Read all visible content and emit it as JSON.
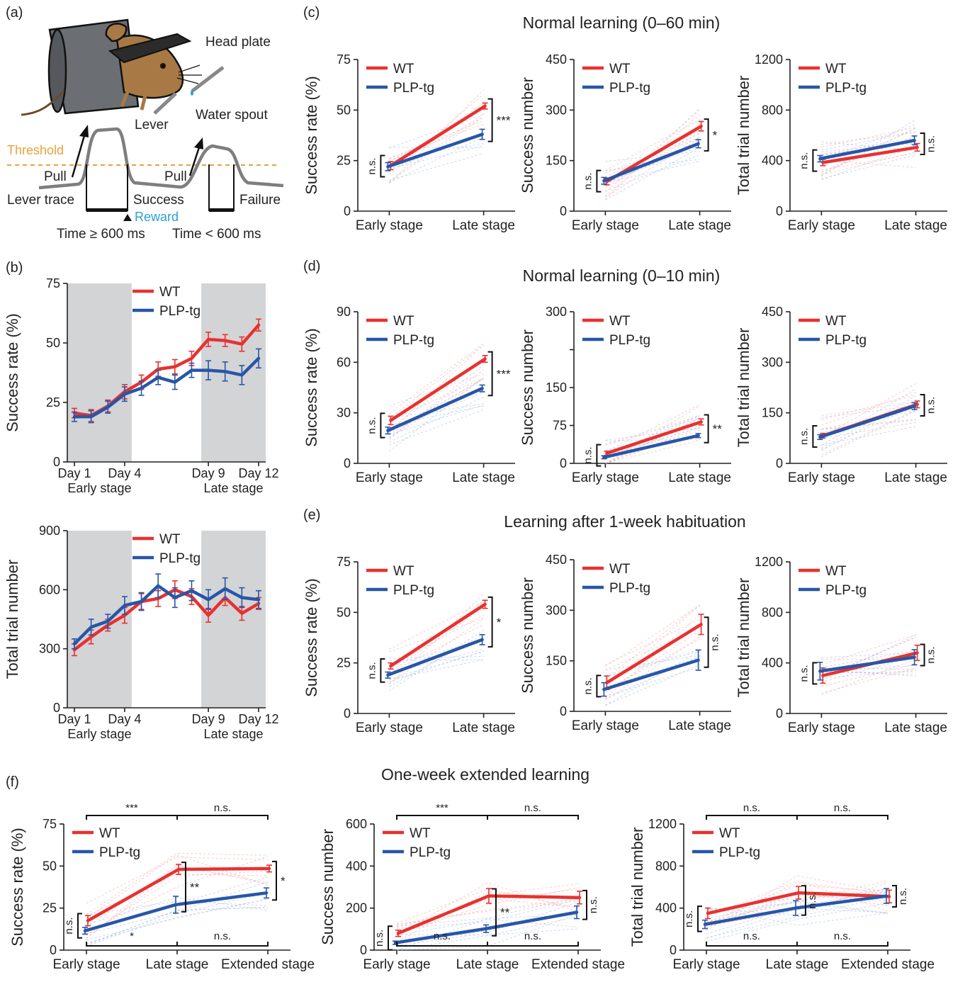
{
  "colors": {
    "wt": "#e8312f",
    "plp": "#2756a7",
    "wt_light": "#f0a0a0",
    "plp_light": "#9fb4df",
    "shade": "#d3d4d6",
    "threshold": "#e8a23a",
    "reward": "#2a9fd6"
  },
  "legend": {
    "wt": "WT",
    "plp": "PLP-tg"
  },
  "schematic": {
    "panel_label": "(a)",
    "head_plate": "Head plate",
    "water_spout": "Water spout",
    "lever": "Lever",
    "threshold": "Threshold",
    "pull1": "Pull",
    "pull2": "Pull",
    "lever_trace": "Lever trace",
    "success": "Success",
    "reward": "Reward",
    "failure": "Failure",
    "time_success": "Time ≥ 600 ms",
    "time_failure": "Time < 600 ms"
  },
  "sections": {
    "c": {
      "label": "(c)",
      "title": "Normal learning (0–60 min)"
    },
    "d": {
      "label": "(d)",
      "title": "Normal learning (0–10 min)"
    },
    "e": {
      "label": "(e)",
      "title": "Learning after 1-week habituation"
    },
    "f": {
      "label": "(f)",
      "title": "One-week extended learning"
    }
  },
  "chart_data": [
    {
      "id": "b1",
      "panel_label": "(b)",
      "type": "line",
      "ylabel": "Success rate (%)",
      "ylim": [
        0,
        75
      ],
      "yticks": [
        0,
        25,
        50,
        75
      ],
      "x": [
        1,
        2,
        3,
        4,
        5,
        6,
        7,
        8,
        9,
        10,
        11,
        12
      ],
      "xtick_labels": [
        {
          "x": 1,
          "text": "Day 1"
        },
        {
          "x": 4,
          "text": "Day 4"
        },
        {
          "x": 9,
          "text": "Day 9"
        },
        {
          "x": 12,
          "text": "Day 12"
        }
      ],
      "group_labels": [
        {
          "x": 2.5,
          "text": "Early stage"
        },
        {
          "x": 10.5,
          "text": "Late stage"
        }
      ],
      "shaded": [
        [
          1,
          4
        ],
        [
          9,
          12
        ]
      ],
      "legend": "top-center",
      "series": [
        {
          "name": "WT",
          "values": [
            20.5,
            19.5,
            23.5,
            29.5,
            33.5,
            39,
            40,
            43.5,
            51.5,
            51,
            49.5,
            57.5
          ],
          "err": [
            2,
            2.5,
            2.5,
            3,
            3,
            3,
            3,
            3,
            3,
            2.5,
            3,
            2.5
          ]
        },
        {
          "name": "PLP-tg",
          "values": [
            19,
            19,
            23,
            28.5,
            31,
            35.5,
            33.5,
            38.5,
            38.5,
            38,
            36.5,
            43.5
          ],
          "err": [
            2,
            2.5,
            2.5,
            3,
            3,
            3,
            3,
            3,
            4,
            4,
            4,
            4
          ]
        }
      ]
    },
    {
      "id": "b2",
      "type": "line",
      "ylabel": "Total trial number",
      "ylim": [
        0,
        900
      ],
      "yticks": [
        0,
        300,
        600,
        900
      ],
      "x": [
        1,
        2,
        3,
        4,
        5,
        6,
        7,
        8,
        9,
        10,
        11,
        12
      ],
      "xtick_labels": [
        {
          "x": 1,
          "text": "Day 1"
        },
        {
          "x": 4,
          "text": "Day 4"
        },
        {
          "x": 9,
          "text": "Day 9"
        },
        {
          "x": 12,
          "text": "Day 12"
        }
      ],
      "group_labels": [
        {
          "x": 2.5,
          "text": "Early stage"
        },
        {
          "x": 10.5,
          "text": "Late stage"
        }
      ],
      "shaded": [
        [
          1,
          4
        ],
        [
          9,
          12
        ]
      ],
      "legend": "top-center",
      "series": [
        {
          "name": "WT",
          "values": [
            295,
            360,
            420,
            470,
            540,
            555,
            600,
            565,
            470,
            560,
            480,
            530
          ],
          "err": [
            30,
            35,
            30,
            40,
            40,
            40,
            45,
            40,
            35,
            40,
            35,
            30
          ]
        },
        {
          "name": "PLP-tg",
          "values": [
            325,
            410,
            440,
            520,
            540,
            620,
            560,
            595,
            550,
            605,
            560,
            550
          ],
          "err": [
            25,
            40,
            35,
            45,
            45,
            60,
            50,
            50,
            50,
            55,
            50,
            45
          ]
        }
      ]
    },
    {
      "id": "c1",
      "type": "line",
      "ylabel": "Success rate (%)",
      "ylim": [
        0,
        75
      ],
      "yticks": [
        0,
        25,
        50,
        75
      ],
      "categories": [
        "Early stage",
        "Late stage"
      ],
      "legend": "top-left",
      "series": [
        {
          "name": "WT",
          "values": [
            22.5,
            52
          ],
          "err": [
            2,
            1.5
          ]
        },
        {
          "name": "PLP-tg",
          "values": [
            22,
            38
          ],
          "err": [
            2,
            2.5
          ]
        }
      ],
      "annotations": [
        {
          "at": "early",
          "text": "n.s."
        },
        {
          "at": "late",
          "text": "***"
        }
      ]
    },
    {
      "id": "c2",
      "type": "line",
      "ylabel": "Success number",
      "ylim": [
        0,
        450
      ],
      "yticks": [
        0,
        150,
        300,
        450
      ],
      "categories": [
        "Early stage",
        "Late stage"
      ],
      "legend": "top-left",
      "series": [
        {
          "name": "WT",
          "values": [
            88,
            252
          ],
          "err": [
            10,
            14
          ]
        },
        {
          "name": "PLP-tg",
          "values": [
            90,
            200
          ],
          "err": [
            10,
            12
          ]
        }
      ],
      "annotations": [
        {
          "at": "early",
          "text": "n.s."
        },
        {
          "at": "late",
          "text": "*"
        }
      ]
    },
    {
      "id": "c3",
      "type": "line",
      "ylabel": "Total trial number",
      "ylim": [
        0,
        1200
      ],
      "yticks": [
        0,
        400,
        800,
        1200
      ],
      "categories": [
        "Early stage",
        "Late stage"
      ],
      "legend": "top-left",
      "series": [
        {
          "name": "WT",
          "values": [
            385,
            505
          ],
          "err": [
            25,
            30
          ]
        },
        {
          "name": "PLP-tg",
          "values": [
            415,
            560
          ],
          "err": [
            25,
            35
          ]
        }
      ],
      "annotations": [
        {
          "at": "early",
          "text": "n.s."
        },
        {
          "at": "late",
          "text": "n.s."
        }
      ]
    },
    {
      "id": "d1",
      "type": "line",
      "ylabel": "Success rate (%)",
      "ylim": [
        0,
        90
      ],
      "yticks": [
        0,
        30,
        60,
        90
      ],
      "categories": [
        "Early stage",
        "Late stage"
      ],
      "legend": "top-left",
      "series": [
        {
          "name": "WT",
          "values": [
            25.5,
            62
          ],
          "err": [
            2.5,
            2
          ]
        },
        {
          "name": "PLP-tg",
          "values": [
            19.5,
            44.5
          ],
          "err": [
            2,
            2
          ]
        }
      ],
      "annotations": [
        {
          "at": "early",
          "text": "n.s."
        },
        {
          "at": "late",
          "text": "***"
        }
      ]
    },
    {
      "id": "d2",
      "type": "line",
      "ylabel": "Success number",
      "ylim": [
        0,
        300
      ],
      "yticks": [
        0,
        75,
        150,
        225,
        300
      ],
      "ytick_labels": [
        "0",
        "75",
        "150",
        "",
        "300"
      ],
      "categories": [
        "Early stage",
        "Late stage"
      ],
      "legend": "top-left",
      "series": [
        {
          "name": "WT",
          "values": [
            20,
            82
          ],
          "err": [
            4,
            6
          ]
        },
        {
          "name": "PLP-tg",
          "values": [
            12,
            55
          ],
          "err": [
            3,
            4
          ]
        }
      ],
      "annotations": [
        {
          "at": "early",
          "text": "n.s."
        },
        {
          "at": "late",
          "text": "**"
        }
      ]
    },
    {
      "id": "d3",
      "type": "line",
      "ylabel": "Total trial number",
      "ylim": [
        0,
        450
      ],
      "yticks": [
        0,
        150,
        300,
        450
      ],
      "categories": [
        "Early stage",
        "Late stage"
      ],
      "legend": "top-left",
      "series": [
        {
          "name": "WT",
          "values": [
            82,
            175
          ],
          "err": [
            7,
            10
          ]
        },
        {
          "name": "PLP-tg",
          "values": [
            78,
            170
          ],
          "err": [
            7,
            10
          ]
        }
      ],
      "annotations": [
        {
          "at": "early",
          "text": "n.s."
        },
        {
          "at": "late",
          "text": "n.s."
        }
      ]
    },
    {
      "id": "e1",
      "type": "line",
      "ylabel": "Success rate (%)",
      "ylim": [
        0,
        75
      ],
      "yticks": [
        0,
        25,
        50,
        75
      ],
      "categories": [
        "Early stage",
        "Late stage"
      ],
      "legend": "top-left",
      "series": [
        {
          "name": "WT",
          "values": [
            23.5,
            54
          ],
          "err": [
            1.5,
            2
          ]
        },
        {
          "name": "PLP-tg",
          "values": [
            19,
            36.5
          ],
          "err": [
            1.5,
            2.5
          ]
        }
      ],
      "annotations": [
        {
          "at": "early",
          "text": "n.s."
        },
        {
          "at": "late",
          "text": "*"
        }
      ]
    },
    {
      "id": "e2",
      "type": "line",
      "ylabel": "Success number",
      "ylim": [
        0,
        450
      ],
      "yticks": [
        0,
        150,
        300,
        450
      ],
      "categories": [
        "Early stage",
        "Late stage"
      ],
      "legend": "top-left",
      "series": [
        {
          "name": "WT",
          "values": [
            85,
            258
          ],
          "err": [
            20,
            30
          ]
        },
        {
          "name": "PLP-tg",
          "values": [
            65,
            152
          ],
          "err": [
            20,
            30
          ]
        }
      ],
      "annotations": [
        {
          "at": "early",
          "text": "n.s."
        },
        {
          "at": "late",
          "text": "n.s."
        }
      ]
    },
    {
      "id": "e3",
      "type": "line",
      "ylabel": "Total trial number",
      "ylim": [
        0,
        1200
      ],
      "yticks": [
        0,
        400,
        800,
        1200
      ],
      "categories": [
        "Early stage",
        "Late stage"
      ],
      "legend": "top-left",
      "series": [
        {
          "name": "WT",
          "values": [
            300,
            480
          ],
          "err": [
            60,
            60
          ]
        },
        {
          "name": "PLP-tg",
          "values": [
            335,
            445
          ],
          "err": [
            70,
            60
          ]
        }
      ],
      "annotations": [
        {
          "at": "early",
          "text": "n.s."
        },
        {
          "at": "late",
          "text": "n.s."
        }
      ]
    },
    {
      "id": "f1",
      "type": "line",
      "ylabel": "Success rate (%)",
      "ylim": [
        0,
        75
      ],
      "yticks": [
        0,
        25,
        50,
        75
      ],
      "categories": [
        "Early stage",
        "Late stage",
        "Extended stage"
      ],
      "legend": "top-left",
      "series": [
        {
          "name": "WT",
          "values": [
            17.5,
            48,
            48.5
          ],
          "err": [
            3,
            3,
            2
          ]
        },
        {
          "name": "PLP-tg",
          "values": [
            11.5,
            27,
            34
          ],
          "err": [
            2,
            5,
            3
          ]
        }
      ],
      "annotations": [
        {
          "at": 0,
          "text": "n.s."
        },
        {
          "at": 1,
          "text": "**"
        },
        {
          "at": 2,
          "text": "*"
        },
        {
          "pair": [
            0,
            1
          ],
          "pos": "top",
          "text": "***"
        },
        {
          "pair": [
            1,
            2
          ],
          "pos": "top",
          "text": "n.s."
        },
        {
          "pair": [
            0,
            1
          ],
          "pos": "bottom",
          "text": "*"
        },
        {
          "pair": [
            1,
            2
          ],
          "pos": "bottom",
          "text": "n.s."
        }
      ]
    },
    {
      "id": "f2",
      "type": "line",
      "ylabel": "Success number",
      "ylim": [
        0,
        600
      ],
      "yticks": [
        0,
        200,
        400,
        600
      ],
      "categories": [
        "Early stage",
        "Late stage",
        "Extended stage"
      ],
      "legend": "top-left",
      "series": [
        {
          "name": "WT",
          "values": [
            80,
            258,
            250
          ],
          "err": [
            15,
            35,
            30
          ]
        },
        {
          "name": "PLP-tg",
          "values": [
            35,
            102,
            180
          ],
          "err": [
            8,
            18,
            30
          ]
        }
      ],
      "annotations": [
        {
          "at": 0,
          "text": "n.s."
        },
        {
          "at": 1,
          "text": "**"
        },
        {
          "at": 2,
          "text": "n.s."
        },
        {
          "pair": [
            0,
            1
          ],
          "pos": "top",
          "text": "***"
        },
        {
          "pair": [
            1,
            2
          ],
          "pos": "top",
          "text": "n.s."
        },
        {
          "pair": [
            0,
            1
          ],
          "pos": "bottom",
          "text": "n.s."
        },
        {
          "pair": [
            1,
            2
          ],
          "pos": "bottom",
          "text": "n.s."
        }
      ]
    },
    {
      "id": "f3",
      "type": "line",
      "ylabel": "Total trial number",
      "ylim": [
        0,
        1200
      ],
      "yticks": [
        0,
        400,
        800,
        1200
      ],
      "categories": [
        "Early stage",
        "Late stage",
        "Extended stage"
      ],
      "legend": "top-left",
      "series": [
        {
          "name": "WT",
          "values": [
            350,
            545,
            510
          ],
          "err": [
            50,
            60,
            60
          ]
        },
        {
          "name": "PLP-tg",
          "values": [
            245,
            400,
            515
          ],
          "err": [
            40,
            70,
            70
          ]
        }
      ],
      "annotations": [
        {
          "at": 0,
          "text": "n.s."
        },
        {
          "at": 1,
          "text": "n.s."
        },
        {
          "at": 2,
          "text": "n.s."
        },
        {
          "pair": [
            0,
            1
          ],
          "pos": "top",
          "text": "n.s."
        },
        {
          "pair": [
            1,
            2
          ],
          "pos": "top",
          "text": "n.s."
        },
        {
          "pair": [
            0,
            1
          ],
          "pos": "bottom",
          "text": "n.s."
        },
        {
          "pair": [
            1,
            2
          ],
          "pos": "bottom",
          "text": "n.s."
        }
      ]
    }
  ]
}
